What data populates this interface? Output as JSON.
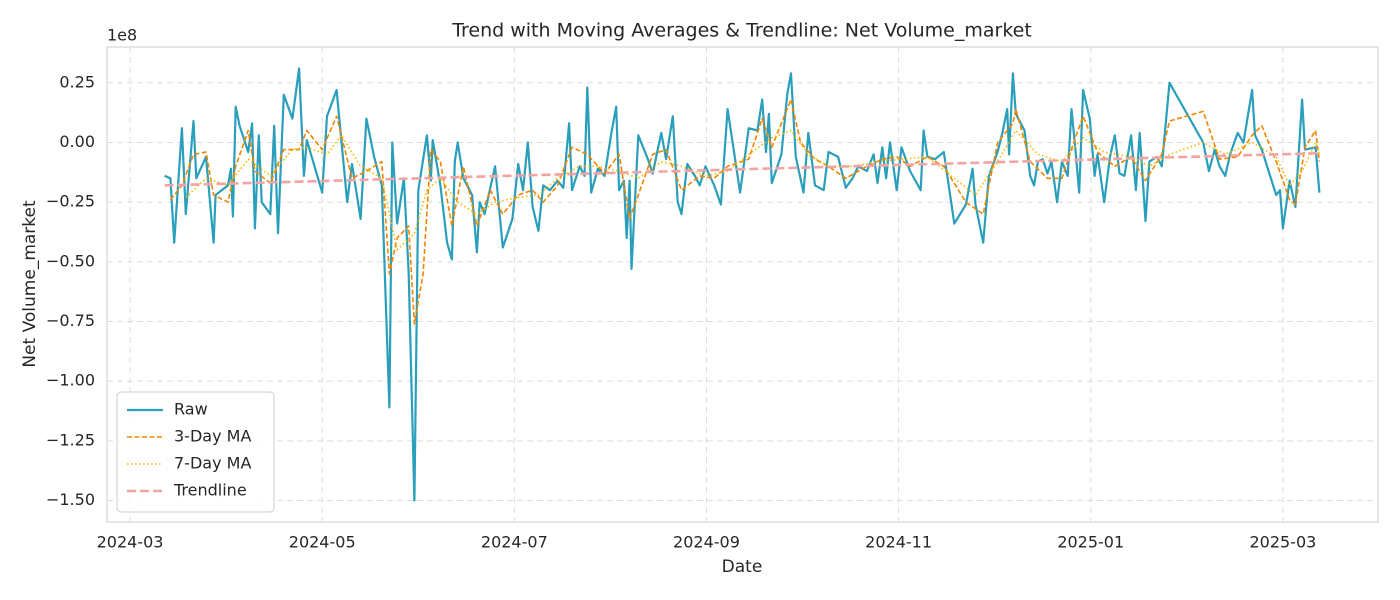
{
  "chart_data": {
    "type": "line",
    "title": "Trend with Moving Averages & Trendline: Net Volume_market",
    "x_label": "Date",
    "y_label": "Net Volume_market",
    "y_offset_label": "1e8",
    "xlim": [
      -0.24,
      12.99
    ],
    "ylim": [
      -1.59,
      0.4
    ],
    "xticks": [
      {
        "value": 0,
        "label": "2024-03"
      },
      {
        "value": 2,
        "label": "2024-05"
      },
      {
        "value": 4,
        "label": "2024-07"
      },
      {
        "value": 6,
        "label": "2024-09"
      },
      {
        "value": 8,
        "label": "2024-11"
      },
      {
        "value": 10,
        "label": "2025-01"
      },
      {
        "value": 12,
        "label": "2025-03"
      }
    ],
    "yticks": [
      {
        "value": -1.5,
        "label": "−1.50"
      },
      {
        "value": -1.25,
        "label": "−1.25"
      },
      {
        "value": -1,
        "label": "−1.00"
      },
      {
        "value": -0.75,
        "label": "−0.75"
      },
      {
        "value": -0.5,
        "label": "−0.50"
      },
      {
        "value": -0.25,
        "label": "−0.25"
      },
      {
        "value": 0,
        "label": "0.00"
      },
      0.25
    ],
    "grid": true,
    "legend": "lower left",
    "series": [
      {
        "name": "Raw",
        "color": "#2a9fbc",
        "line_style": "solid",
        "x": [
          0.36,
          0.42,
          0.46,
          0.54,
          0.58,
          0.66,
          0.69,
          0.79,
          0.87,
          0.89,
          1.02,
          1.05,
          1.07,
          1.1,
          1.14,
          1.23,
          1.27,
          1.3,
          1.34,
          1.37,
          1.46,
          1.5,
          1.54,
          1.6,
          1.69,
          1.76,
          1.81,
          1.84,
          2.0,
          2.05,
          2.15,
          2.26,
          2.31,
          2.4,
          2.46,
          2.54,
          2.62,
          2.7,
          2.73,
          2.78,
          2.85,
          2.9,
          2.96,
          3.0,
          3.09,
          3.13,
          3.15,
          3.23,
          3.3,
          3.35,
          3.38,
          3.41,
          3.47,
          3.56,
          3.61,
          3.64,
          3.69,
          3.75,
          3.8,
          3.88,
          3.98,
          4.04,
          4.09,
          4.14,
          4.19,
          4.25,
          4.3,
          4.37,
          4.45,
          4.51,
          4.57,
          4.6,
          4.68,
          4.73,
          4.76,
          4.8,
          4.87,
          4.94,
          5.01,
          5.06,
          5.09,
          5.14,
          5.17,
          5.2,
          5.22,
          5.29,
          5.39,
          5.44,
          5.53,
          5.58,
          5.65,
          5.7,
          5.74,
          5.8,
          5.88,
          5.93,
          5.99,
          6.08,
          6.15,
          6.22,
          6.35,
          6.44,
          6.53,
          6.58,
          6.62,
          6.65,
          6.68,
          6.78,
          6.84,
          6.88,
          6.93,
          7.01,
          7.06,
          7.13,
          7.22,
          7.27,
          7.37,
          7.45,
          7.52,
          7.58,
          7.67,
          7.74,
          7.78,
          7.83,
          7.87,
          7.91,
          7.98,
          8.03,
          8.12,
          8.23,
          8.26,
          8.3,
          8.38,
          8.47,
          8.58,
          8.7,
          8.77,
          8.8,
          8.88,
          8.94,
          9.03,
          9.08,
          9.13,
          9.15,
          9.19,
          9.22,
          9.31,
          9.37,
          9.41,
          9.45,
          9.5,
          9.55,
          9.59,
          9.65,
          9.7,
          9.76,
          9.8,
          9.84,
          9.88,
          9.92,
          9.99,
          10.04,
          10.07,
          10.14,
          10.2,
          10.25,
          10.3,
          10.35,
          10.42,
          10.47,
          10.51,
          10.57,
          10.61,
          10.69,
          10.74,
          10.82,
          11.17,
          11.23,
          11.29,
          11.34,
          11.4,
          11.45,
          11.53,
          11.59,
          11.68,
          11.71,
          11.78,
          11.93,
          11.97,
          12.0,
          12.07,
          12.13,
          12.2,
          12.23,
          12.34,
          12.38
        ],
        "values": [
          -0.14,
          -0.15,
          -0.42,
          0.06,
          -0.3,
          0.09,
          -0.15,
          -0.06,
          -0.42,
          -0.22,
          -0.18,
          -0.11,
          -0.31,
          0.15,
          0.07,
          -0.04,
          0.08,
          -0.36,
          0.03,
          -0.25,
          -0.3,
          0.07,
          -0.38,
          0.2,
          0.1,
          0.31,
          -0.14,
          0.01,
          -0.21,
          0.11,
          0.22,
          -0.25,
          -0.09,
          -0.32,
          0.1,
          -0.06,
          -0.18,
          -1.11,
          0.0,
          -0.34,
          -0.15,
          -0.55,
          -1.5,
          -0.2,
          0.03,
          -0.16,
          0.01,
          -0.18,
          -0.42,
          -0.49,
          -0.08,
          0.0,
          -0.15,
          -0.22,
          -0.46,
          -0.25,
          -0.3,
          -0.19,
          -0.1,
          -0.44,
          -0.32,
          -0.09,
          -0.2,
          0.0,
          -0.27,
          -0.37,
          -0.18,
          -0.2,
          -0.16,
          -0.19,
          0.08,
          -0.2,
          -0.1,
          -0.14,
          0.23,
          -0.21,
          -0.11,
          -0.14,
          0.04,
          0.15,
          -0.2,
          -0.16,
          -0.4,
          -0.16,
          -0.53,
          0.03,
          -0.07,
          -0.13,
          0.04,
          -0.07,
          0.11,
          -0.25,
          -0.3,
          -0.09,
          -0.14,
          -0.18,
          -0.1,
          -0.18,
          -0.26,
          0.14,
          -0.21,
          0.06,
          0.05,
          0.18,
          -0.04,
          0.12,
          -0.17,
          -0.05,
          0.2,
          0.29,
          -0.06,
          -0.21,
          0.04,
          -0.18,
          -0.2,
          -0.04,
          -0.06,
          -0.19,
          -0.15,
          -0.1,
          -0.12,
          -0.05,
          -0.17,
          -0.02,
          -0.15,
          0.0,
          -0.2,
          -0.02,
          -0.12,
          -0.2,
          0.05,
          -0.06,
          -0.07,
          -0.04,
          -0.34,
          -0.26,
          -0.11,
          -0.26,
          -0.42,
          -0.14,
          -0.04,
          0.04,
          0.14,
          -0.05,
          0.29,
          0.12,
          0.05,
          -0.14,
          -0.18,
          -0.08,
          -0.07,
          -0.13,
          -0.08,
          -0.25,
          -0.08,
          -0.14,
          0.14,
          -0.03,
          -0.21,
          0.22,
          0.1,
          -0.14,
          -0.05,
          -0.25,
          -0.06,
          0.03,
          -0.13,
          -0.14,
          0.03,
          -0.2,
          0.04,
          -0.33,
          -0.08,
          -0.06,
          -0.1,
          0.25,
          0.0,
          -0.12,
          -0.03,
          -0.1,
          -0.14,
          -0.05,
          0.04,
          0.0,
          0.22,
          0.03,
          -0.03,
          -0.22,
          -0.2,
          -0.36,
          -0.16,
          -0.27,
          0.18,
          -0.03,
          -0.02,
          -0.21
        ]
      },
      {
        "name": "3-Day MA",
        "color": "#f28500",
        "line_style": "dashed",
        "x": [
          0.42,
          0.54,
          0.66,
          0.79,
          0.87,
          1.02,
          1.1,
          1.23,
          1.3,
          1.46,
          1.6,
          1.76,
          1.84,
          2.0,
          2.15,
          2.31,
          2.46,
          2.62,
          2.7,
          2.78,
          2.9,
          2.96,
          3.05,
          3.13,
          3.23,
          3.35,
          3.47,
          3.61,
          3.75,
          3.88,
          4.04,
          4.19,
          4.3,
          4.45,
          4.6,
          4.76,
          4.94,
          5.09,
          5.2,
          5.29,
          5.44,
          5.58,
          5.74,
          5.93,
          6.08,
          6.22,
          6.44,
          6.58,
          6.68,
          6.88,
          6.98,
          7.13,
          7.27,
          7.45,
          7.67,
          7.83,
          7.98,
          8.12,
          8.3,
          8.47,
          8.7,
          8.88,
          9.03,
          9.19,
          9.22,
          9.37,
          9.55,
          9.7,
          9.84,
          9.92,
          10.07,
          10.25,
          10.42,
          10.57,
          10.74,
          10.82,
          11.17,
          11.34,
          11.53,
          11.68,
          11.78,
          11.93,
          12.07,
          12.13,
          12.23,
          12.34,
          12.38
        ],
        "values": [
          -0.24,
          -0.18,
          -0.05,
          -0.04,
          -0.22,
          -0.25,
          -0.1,
          0.05,
          -0.12,
          -0.17,
          -0.03,
          -0.03,
          0.05,
          -0.03,
          0.11,
          -0.15,
          -0.12,
          -0.08,
          -0.55,
          -0.4,
          -0.35,
          -0.76,
          -0.55,
          -0.03,
          -0.08,
          -0.35,
          -0.1,
          -0.35,
          -0.2,
          -0.3,
          -0.22,
          -0.2,
          -0.25,
          -0.18,
          -0.02,
          -0.05,
          -0.13,
          -0.05,
          -0.32,
          -0.22,
          -0.05,
          -0.03,
          -0.2,
          -0.14,
          -0.15,
          -0.1,
          -0.07,
          0.1,
          -0.02,
          0.18,
          0.0,
          -0.07,
          -0.1,
          -0.15,
          -0.1,
          -0.07,
          -0.06,
          -0.1,
          -0.06,
          -0.1,
          -0.25,
          -0.3,
          0.0,
          0.08,
          0.14,
          -0.08,
          -0.15,
          -0.15,
          0.02,
          0.11,
          -0.04,
          -0.1,
          -0.06,
          -0.16,
          -0.05,
          0.09,
          0.13,
          -0.07,
          -0.06,
          0.03,
          0.07,
          -0.08,
          -0.24,
          -0.26,
          -0.02,
          0.05,
          -0.08
        ]
      },
      {
        "name": "7-Day MA",
        "color": "#f5b800",
        "line_style": "dotted",
        "x": [
          0.58,
          0.79,
          1.02,
          1.23,
          1.46,
          1.69,
          1.84,
          2.05,
          2.2,
          2.4,
          2.62,
          2.78,
          2.96,
          3.09,
          3.23,
          3.41,
          3.61,
          3.8,
          4.04,
          4.25,
          4.45,
          4.68,
          4.87,
          5.09,
          5.29,
          5.53,
          5.74,
          5.99,
          6.22,
          6.44,
          6.68,
          6.88,
          7.06,
          7.27,
          7.52,
          7.78,
          8.03,
          8.3,
          8.58,
          8.8,
          9.03,
          9.22,
          9.45,
          9.7,
          9.92,
          10.14,
          10.42,
          10.61,
          10.82,
          11.17,
          11.4,
          11.68,
          11.93,
          12.07,
          12.2,
          12.34,
          12.38
        ],
        "values": [
          -0.23,
          -0.15,
          -0.18,
          -0.07,
          -0.14,
          -0.03,
          -0.02,
          -0.05,
          0.03,
          -0.1,
          -0.15,
          -0.45,
          -0.38,
          -0.2,
          -0.15,
          -0.25,
          -0.3,
          -0.25,
          -0.23,
          -0.22,
          -0.15,
          -0.1,
          -0.1,
          -0.12,
          -0.15,
          -0.08,
          -0.1,
          -0.14,
          -0.12,
          -0.05,
          0.02,
          0.05,
          -0.05,
          -0.1,
          -0.1,
          -0.08,
          -0.07,
          -0.06,
          -0.15,
          -0.22,
          -0.08,
          0.05,
          -0.05,
          -0.08,
          0.02,
          -0.04,
          -0.06,
          -0.1,
          -0.05,
          0.0,
          -0.05,
          0.0,
          -0.06,
          -0.18,
          -0.12,
          0.0,
          -0.05
        ]
      },
      {
        "name": "Trendline",
        "color": "#f4a3a3",
        "line_style": "trend",
        "x": [
          0.36,
          12.38
        ],
        "values": [
          -0.18,
          -0.045
        ]
      }
    ]
  }
}
